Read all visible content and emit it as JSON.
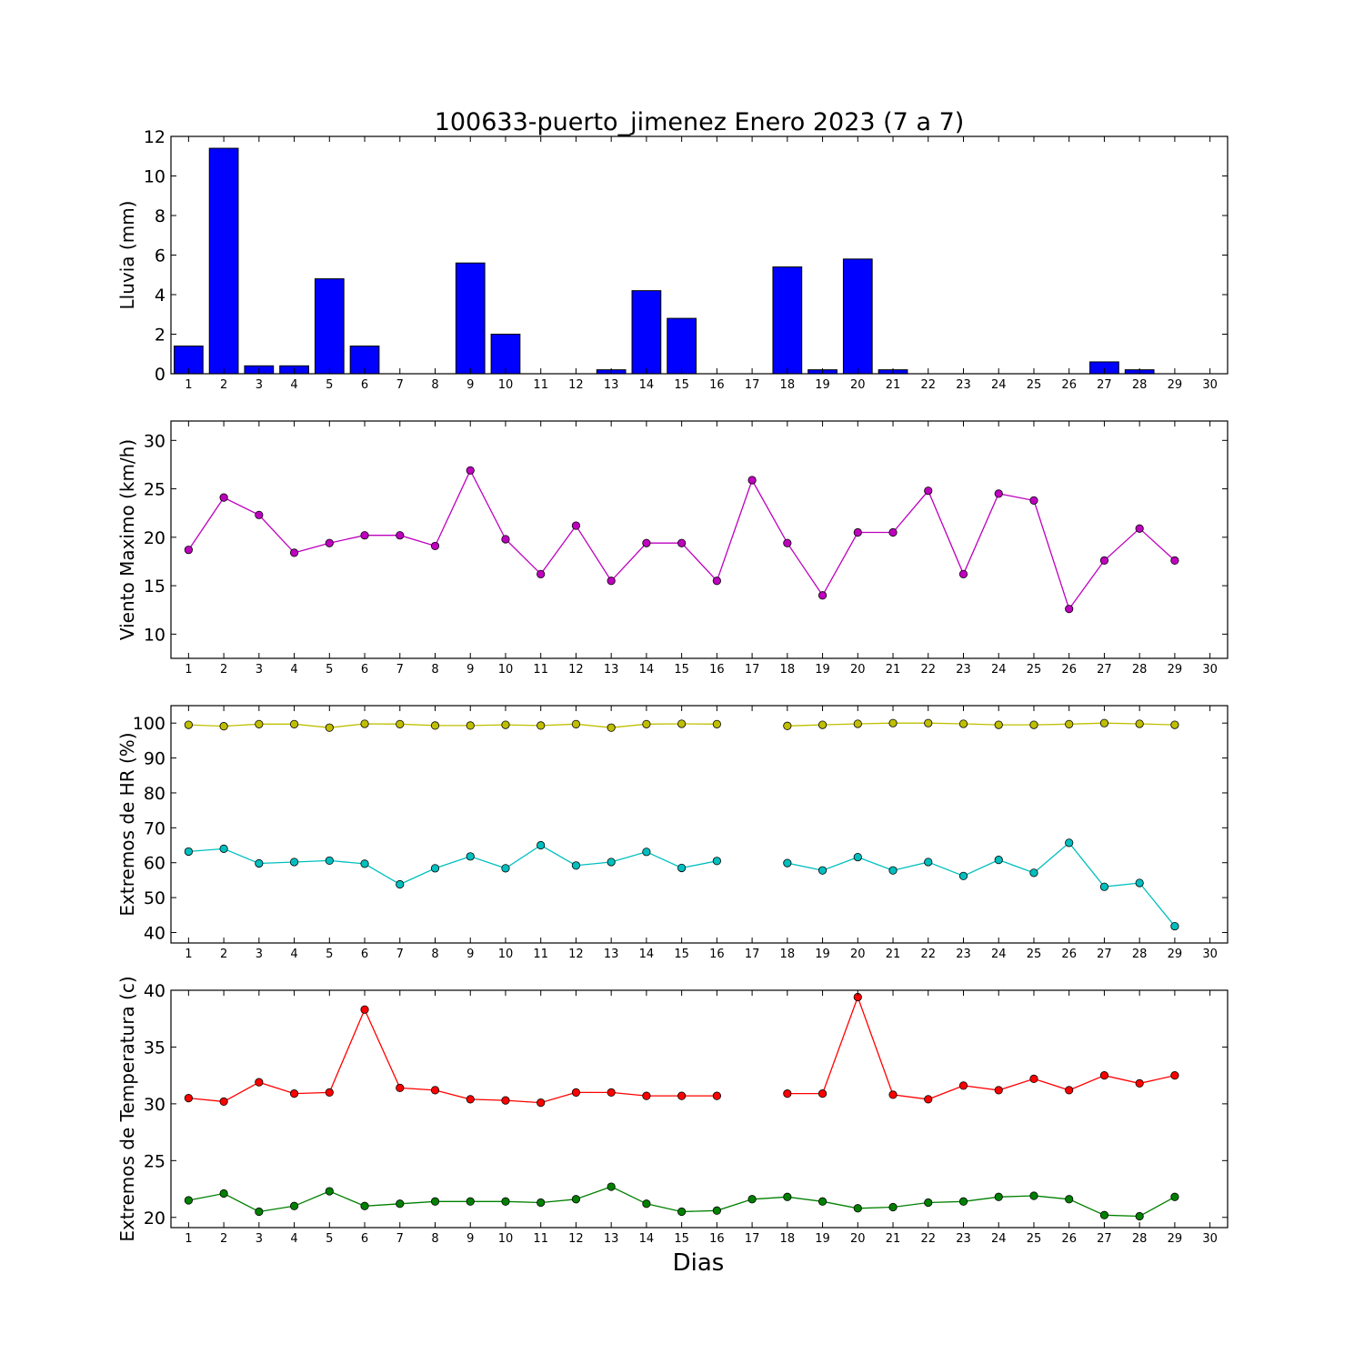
{
  "figure": {
    "title": "100633-puerto_jimenez Enero 2023  (7 a 7)",
    "xlabel": "Dias"
  },
  "chart_data": [
    {
      "type": "bar",
      "ylabel": "Lluvia (mm)",
      "ylim": [
        0,
        12
      ],
      "yticks": [
        0,
        2,
        4,
        6,
        8,
        10,
        12
      ],
      "categories": [
        1,
        2,
        3,
        4,
        5,
        6,
        7,
        8,
        9,
        10,
        11,
        12,
        13,
        14,
        15,
        16,
        17,
        18,
        19,
        20,
        21,
        22,
        23,
        24,
        25,
        26,
        27,
        28,
        29,
        30
      ],
      "series": [
        {
          "color": "#0000ff",
          "values": [
            1.4,
            11.4,
            0.4,
            0.4,
            4.8,
            1.4,
            0,
            0,
            5.6,
            2.0,
            0,
            0,
            0.2,
            4.2,
            2.8,
            0,
            0,
            5.4,
            0.2,
            5.8,
            0.2,
            0,
            0,
            0,
            0,
            0,
            0.6,
            0.2,
            0,
            null
          ]
        }
      ]
    },
    {
      "type": "line",
      "ylabel": "Viento Maximo (km/h)",
      "ylim": [
        7.5,
        32
      ],
      "yticks": [
        10,
        15,
        20,
        25,
        30
      ],
      "categories": [
        1,
        2,
        3,
        4,
        5,
        6,
        7,
        8,
        9,
        10,
        11,
        12,
        13,
        14,
        15,
        16,
        17,
        18,
        19,
        20,
        21,
        22,
        23,
        24,
        25,
        26,
        27,
        28,
        29,
        30
      ],
      "series": [
        {
          "color": "#bf00bf",
          "values": [
            18.7,
            24.1,
            22.3,
            18.4,
            19.4,
            20.2,
            20.2,
            19.1,
            26.9,
            19.8,
            16.2,
            21.2,
            15.5,
            19.4,
            19.4,
            15.5,
            25.9,
            19.4,
            14.0,
            20.5,
            20.5,
            24.8,
            16.2,
            24.5,
            23.8,
            12.6,
            17.6,
            20.9,
            17.6,
            null
          ]
        }
      ]
    },
    {
      "type": "line",
      "ylabel": "Extremos de HR (%)",
      "ylim": [
        37,
        105
      ],
      "yticks": [
        40,
        50,
        60,
        70,
        80,
        90,
        100
      ],
      "categories": [
        1,
        2,
        3,
        4,
        5,
        6,
        7,
        8,
        9,
        10,
        11,
        12,
        13,
        14,
        15,
        16,
        17,
        18,
        19,
        20,
        21,
        22,
        23,
        24,
        25,
        26,
        27,
        28,
        29,
        30
      ],
      "series": [
        {
          "color": "#bfbf00",
          "values": [
            99.5,
            99.1,
            99.7,
            99.7,
            98.7,
            99.8,
            99.7,
            99.3,
            99.3,
            99.5,
            99.3,
            99.7,
            98.7,
            99.7,
            99.8,
            99.7,
            null,
            99.2,
            99.5,
            99.8,
            100.0,
            100.0,
            99.8,
            99.5,
            99.5,
            99.7,
            100.0,
            99.8,
            99.5,
            null
          ]
        },
        {
          "color": "#00bfbf",
          "values": [
            63.2,
            64.0,
            59.8,
            60.2,
            60.6,
            59.7,
            53.8,
            58.4,
            61.8,
            58.4,
            65.0,
            59.2,
            60.2,
            63.1,
            58.5,
            60.5,
            null,
            59.9,
            57.8,
            61.6,
            57.8,
            60.2,
            56.2,
            60.8,
            57.1,
            65.7,
            53.1,
            54.2,
            41.8,
            null
          ]
        }
      ]
    },
    {
      "type": "line",
      "ylabel": "Extremos de Temperatura (c)",
      "ylim": [
        19.1,
        40
      ],
      "yticks": [
        20,
        25,
        30,
        35,
        40
      ],
      "categories": [
        1,
        2,
        3,
        4,
        5,
        6,
        7,
        8,
        9,
        10,
        11,
        12,
        13,
        14,
        15,
        16,
        17,
        18,
        19,
        20,
        21,
        22,
        23,
        24,
        25,
        26,
        27,
        28,
        29,
        30
      ],
      "series": [
        {
          "color": "#ff0000",
          "values": [
            30.5,
            30.2,
            31.9,
            30.9,
            31.0,
            38.3,
            31.4,
            31.2,
            30.4,
            30.3,
            30.1,
            31.0,
            31.0,
            30.7,
            30.7,
            30.7,
            null,
            30.9,
            30.9,
            39.4,
            30.8,
            30.4,
            31.6,
            31.2,
            32.2,
            31.2,
            32.5,
            31.8,
            32.5,
            null
          ]
        },
        {
          "color": "#008000",
          "values": [
            21.5,
            22.1,
            20.5,
            21.0,
            22.3,
            21.0,
            21.2,
            21.4,
            21.4,
            21.4,
            21.3,
            21.6,
            22.7,
            21.2,
            20.5,
            20.6,
            21.6,
            21.8,
            21.4,
            20.8,
            20.9,
            21.3,
            21.4,
            21.8,
            21.9,
            21.6,
            20.2,
            20.1,
            21.8,
            null
          ]
        }
      ]
    }
  ]
}
